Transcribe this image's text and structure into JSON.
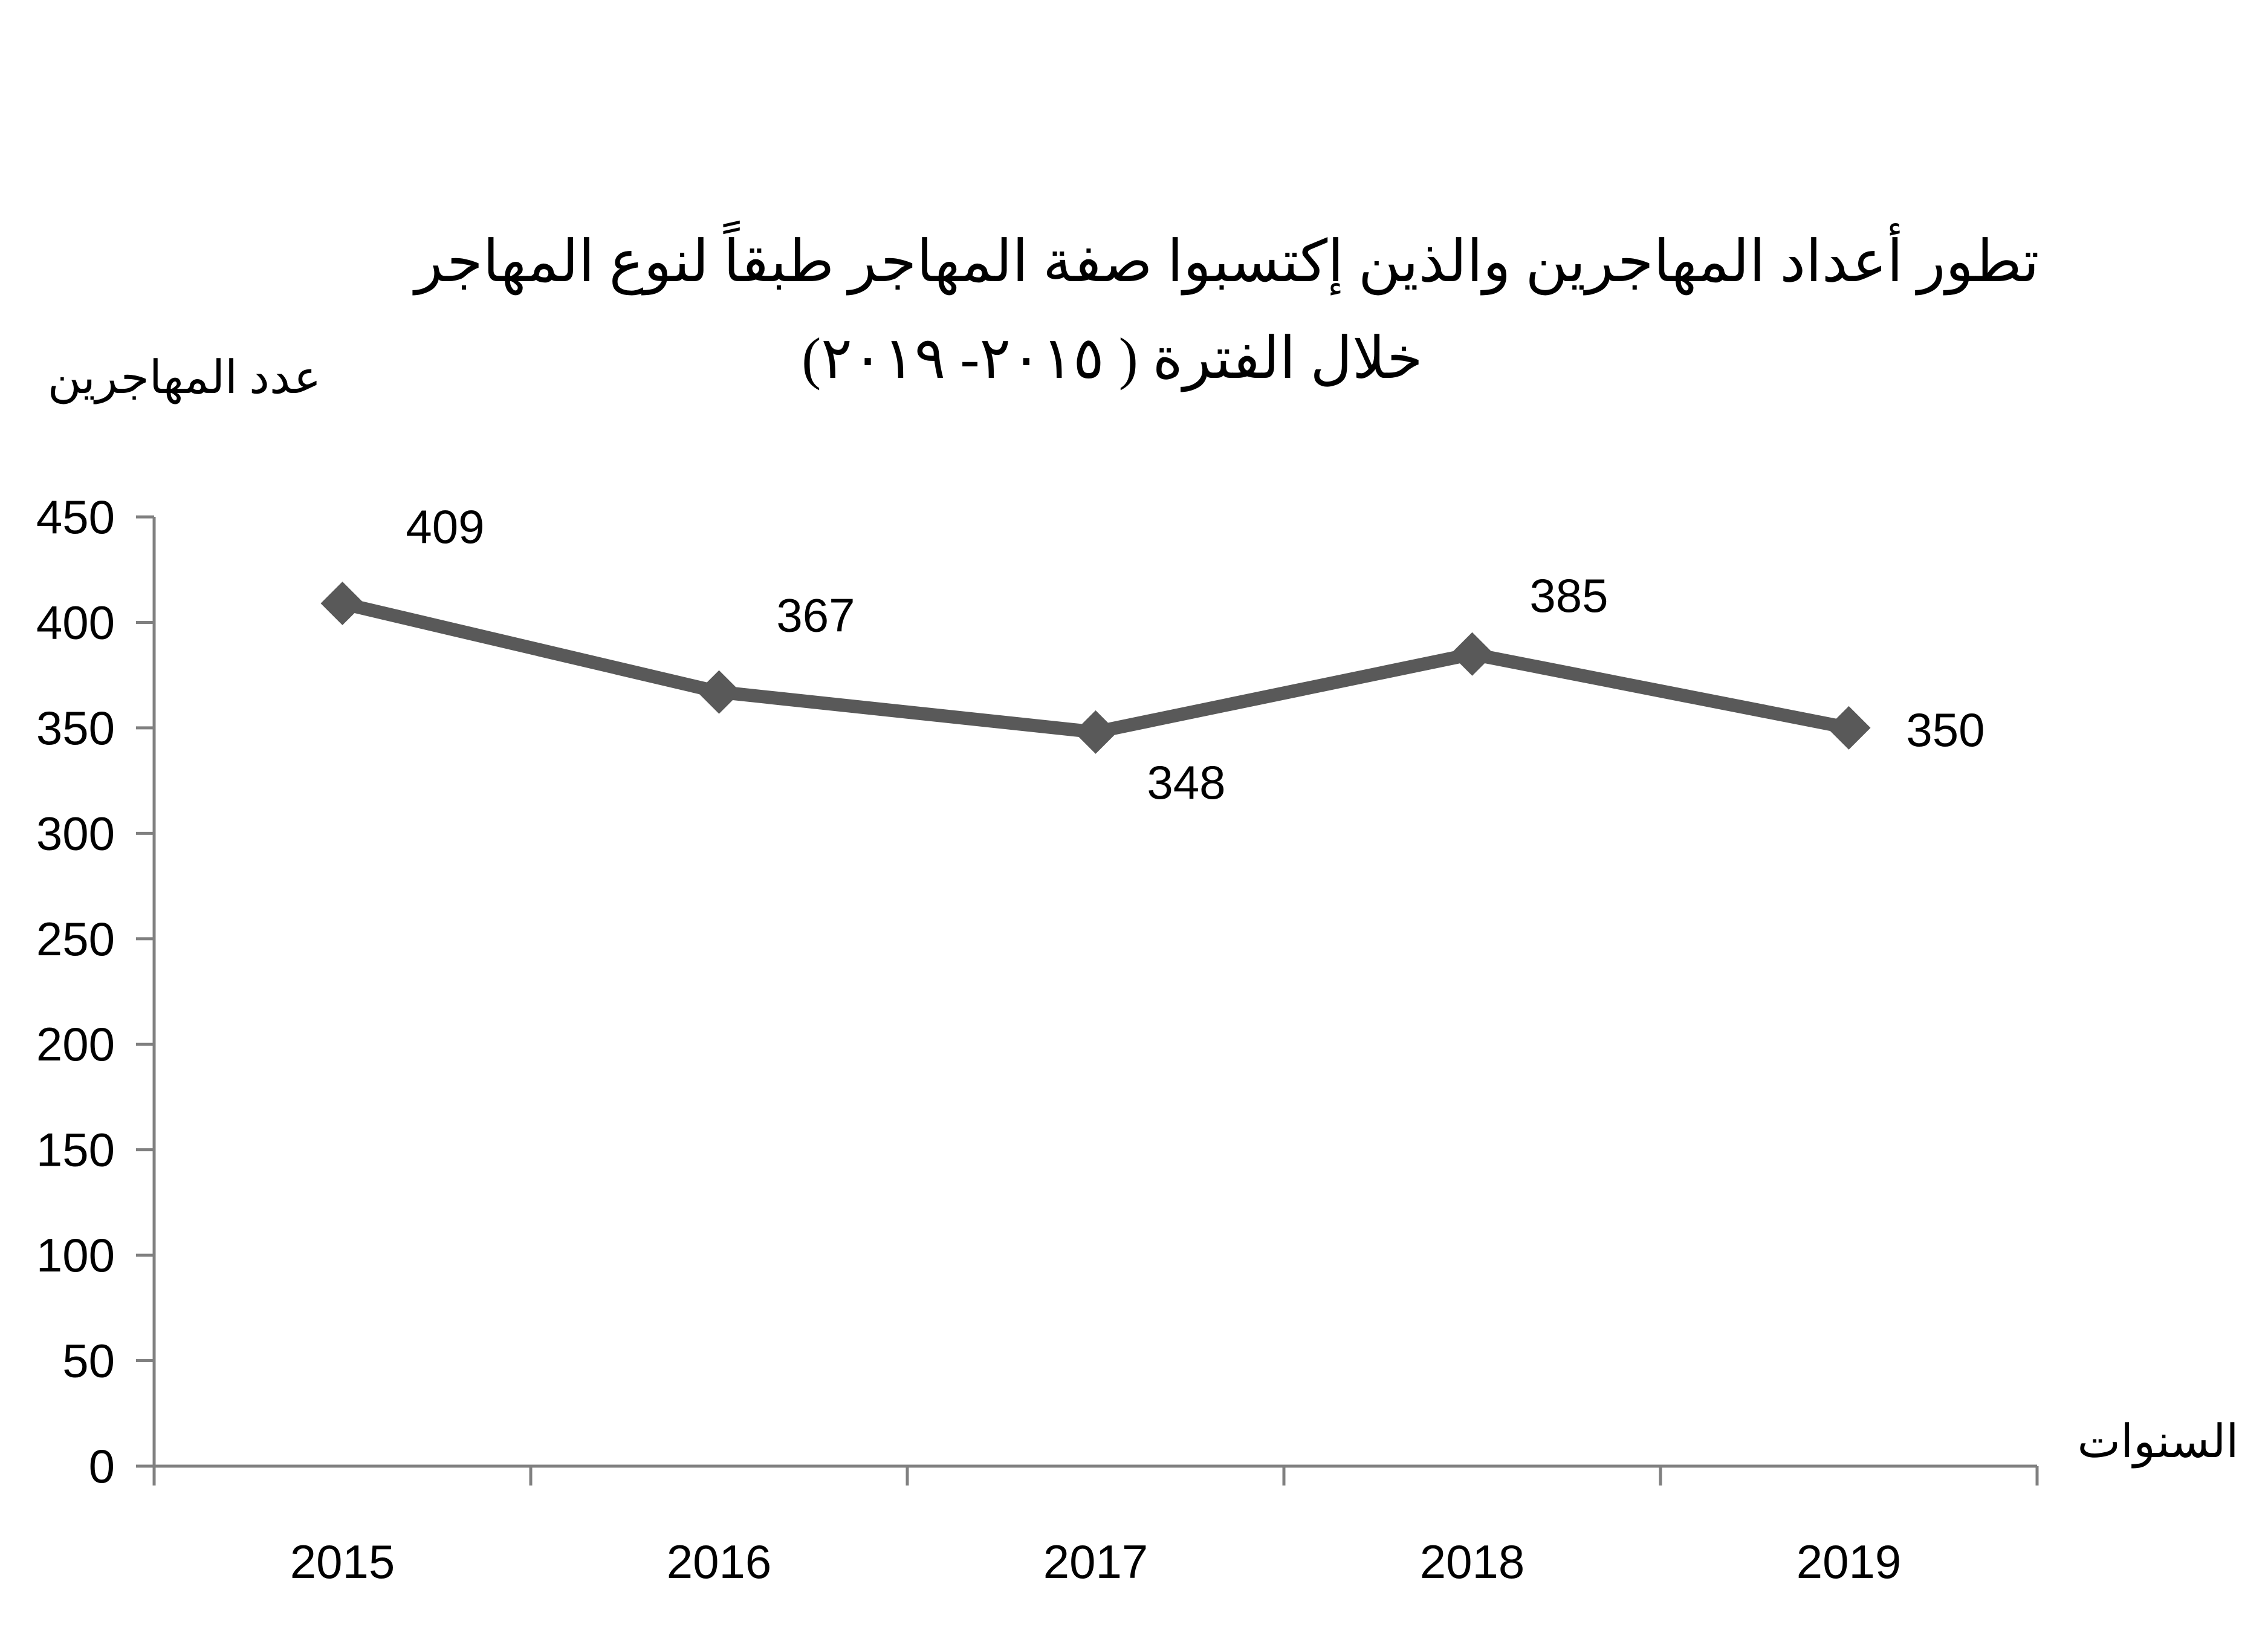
{
  "chart_data": {
    "type": "line",
    "title": "تطور أعداد المهاجرين والذين إكتسبوا صفة المهاجر طبقاً لنوع المهاجر",
    "subtitle": "خلال الفترة ( ٢٠١٥- ٢٠١٩)",
    "ylabel": "عدد المهاجرين",
    "xlabel": "السنوات",
    "categories": [
      "2015",
      "2016",
      "2017",
      "2018",
      "2019"
    ],
    "series": [
      {
        "values": [
          409,
          367,
          348,
          385,
          350
        ]
      }
    ],
    "data_labels": [
      "409",
      "367",
      "348",
      "385",
      "350"
    ],
    "ylim": [
      0,
      450
    ],
    "yticks": [
      "0",
      "50",
      "100",
      "150",
      "200",
      "250",
      "300",
      "350",
      "400",
      "450"
    ],
    "grid": false,
    "legend": "none",
    "line_color": "#595959",
    "axis_color": "#808080"
  }
}
